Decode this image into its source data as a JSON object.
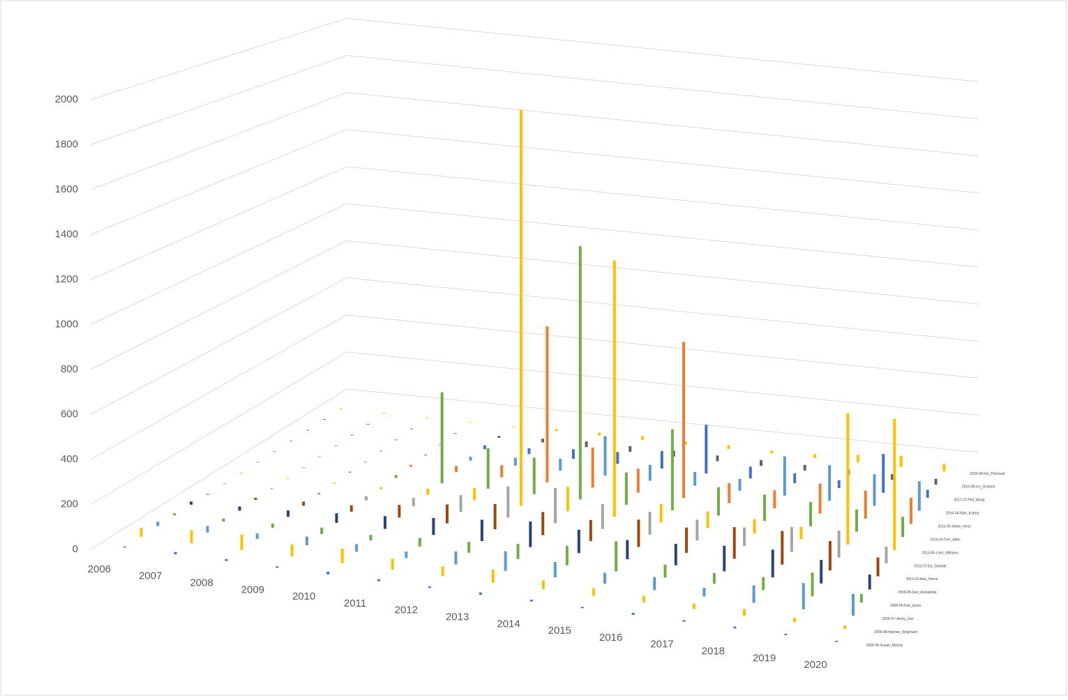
{
  "chart_data": {
    "type": "bar3d",
    "categories": [
      "2006",
      "2007",
      "2008",
      "2009",
      "2010",
      "2011",
      "2012",
      "2013",
      "2014",
      "2015",
      "2016",
      "2017",
      "2018",
      "2019",
      "2020"
    ],
    "ylim": [
      0,
      2000
    ],
    "yticks": [
      0,
      200,
      400,
      600,
      800,
      1000,
      1200,
      1400,
      1600,
      1800,
      2000
    ],
    "grid": true,
    "series": [
      {
        "name": "2006-06-Susan_Murray",
        "color": "#4472c4",
        "values": [
          5,
          10,
          8,
          6,
          12,
          9,
          7,
          10,
          8,
          6,
          9,
          7,
          8,
          6,
          5
        ]
      },
      {
        "name": "2006-08-Hannes_Wegmann",
        "color": "#ffc000",
        "values": [
          40,
          60,
          70,
          55,
          65,
          50,
          45,
          60,
          40,
          35,
          30,
          25,
          30,
          20,
          15
        ]
      },
      {
        "name": "2006-07-Jenny_Zarr",
        "color": "#5b9bd5",
        "values": [
          20,
          30,
          25,
          40,
          35,
          30,
          60,
          90,
          70,
          50,
          60,
          40,
          80,
          120,
          100
        ]
      },
      {
        "name": "2008-05-Dan_Ipsen",
        "color": "#70ad47",
        "values": [
          10,
          15,
          20,
          30,
          25,
          40,
          50,
          70,
          90,
          140,
          60,
          50,
          60,
          110,
          40
        ]
      },
      {
        "name": "2009-05-Dan_Antopolski",
        "color": "#264478",
        "values": [
          15,
          20,
          30,
          45,
          60,
          80,
          100,
          120,
          110,
          90,
          100,
          120,
          130,
          110,
          70
        ]
      },
      {
        "name": "2011-03-Alex_Horne",
        "color": "#9e480e",
        "values": [
          0,
          10,
          20,
          30,
          60,
          90,
          120,
          110,
          100,
          130,
          120,
          150,
          160,
          140,
          90
        ]
      },
      {
        "name": "2012-07-Ed_Gamble",
        "color": "#a5a5a5",
        "values": [
          0,
          5,
          10,
          20,
          40,
          80,
          150,
          170,
          120,
          110,
          100,
          90,
          120,
          130,
          80
        ]
      },
      {
        "name": "2013-06-Liam_Williams",
        "color": "#ffc000",
        "values": [
          0,
          0,
          5,
          10,
          30,
          60,
          1930,
          120,
          1250,
          90,
          80,
          70,
          60,
          640,
          640
        ]
      },
      {
        "name": "2014-04-Tom_Allen",
        "color": "#70ad47",
        "values": [
          0,
          0,
          5,
          15,
          450,
          200,
          180,
          1250,
          160,
          400,
          140,
          130,
          120,
          110,
          100
        ]
      },
      {
        "name": "2015-05-Adam_Hess",
        "color": "#ed7d31",
        "values": [
          0,
          0,
          0,
          10,
          30,
          60,
          780,
          200,
          120,
          780,
          100,
          90,
          150,
          140,
          130
        ]
      },
      {
        "name": "2016-04-Nish_Kumar",
        "color": "#5b9bd5",
        "values": [
          0,
          0,
          0,
          5,
          20,
          40,
          60,
          200,
          80,
          70,
          60,
          200,
          180,
          160,
          150
        ]
      },
      {
        "name": "2017-07-Phil_Wang",
        "color": "#4472c4",
        "values": [
          0,
          0,
          0,
          0,
          20,
          30,
          50,
          60,
          90,
          250,
          60,
          50,
          40,
          200,
          40
        ]
      },
      {
        "name": "2019-08-Ivo_Graham",
        "color": "#636363",
        "values": [
          0,
          0,
          0,
          0,
          10,
          20,
          30,
          30,
          30,
          30,
          30,
          30,
          30,
          30,
          30
        ]
      },
      {
        "name": "2020-08-Kiri_Pritchard",
        "color": "#ffc000",
        "values": [
          0,
          0,
          0,
          0,
          0,
          10,
          15,
          20,
          15,
          20,
          15,
          20,
          40,
          60,
          40
        ]
      }
    ]
  }
}
